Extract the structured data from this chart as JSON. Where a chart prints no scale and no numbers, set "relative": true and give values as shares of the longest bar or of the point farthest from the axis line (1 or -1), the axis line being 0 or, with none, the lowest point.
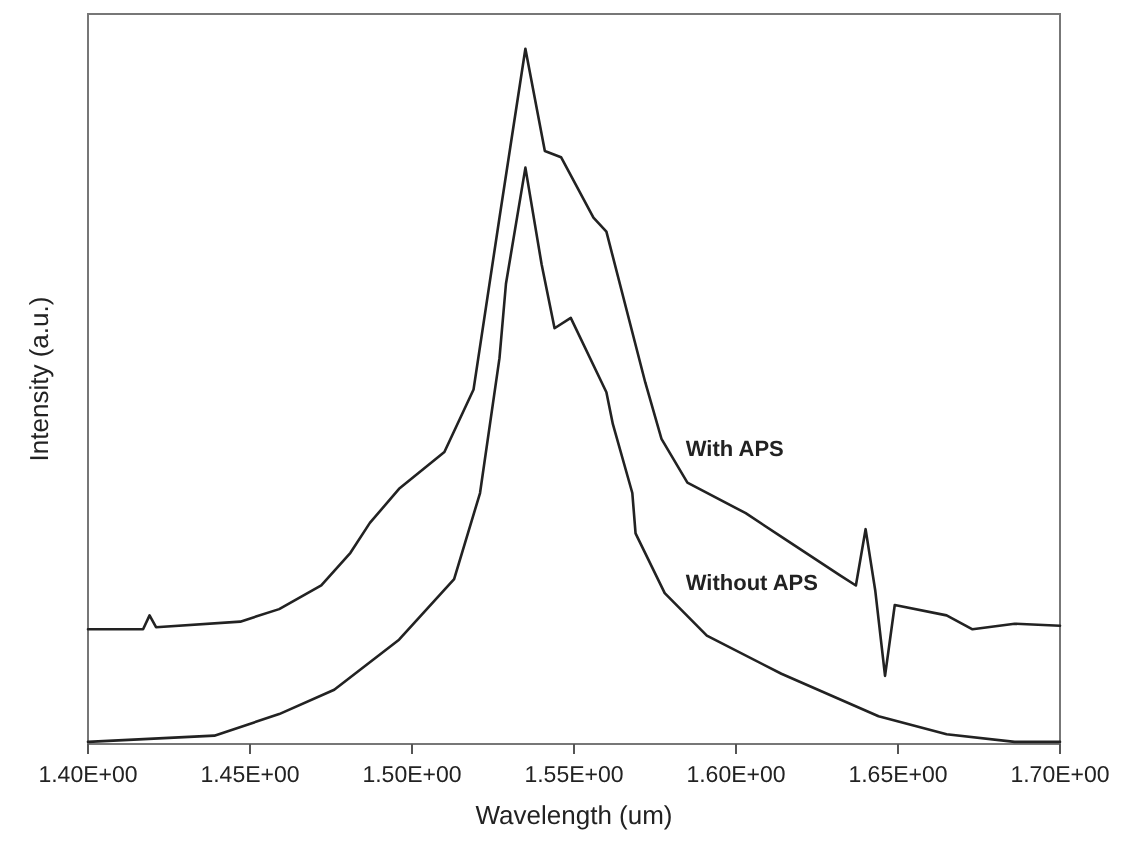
{
  "chart_data": {
    "type": "line",
    "xlabel": "Wavelength (um)",
    "ylabel": "Intensity (a.u.)",
    "relative": true,
    "grid": false,
    "marker": "none",
    "line_style": "solid",
    "xlim": [
      1.4,
      1.7
    ],
    "xticks": [
      {
        "value": 1.4,
        "label": "1.40E+00"
      },
      {
        "value": 1.45,
        "label": "1.45E+00"
      },
      {
        "value": 1.5,
        "label": "1.50E+00"
      },
      {
        "value": 1.55,
        "label": "1.55E+00"
      },
      {
        "value": 1.6,
        "label": "1.60E+00"
      },
      {
        "value": 1.65,
        "label": "1.65E+00"
      },
      {
        "value": 1.7,
        "label": "1.70E+00"
      }
    ],
    "series": [
      {
        "name": "With APS",
        "color": "#222222",
        "x": [
          1.4,
          1.417,
          1.419,
          1.421,
          1.447,
          1.459,
          1.472,
          1.481,
          1.487,
          1.496,
          1.51,
          1.519,
          1.527,
          1.535,
          1.541,
          1.546,
          1.556,
          1.56,
          1.572,
          1.577,
          1.585,
          1.603,
          1.615,
          1.632,
          1.637,
          1.64,
          1.643,
          1.646,
          1.649,
          1.665,
          1.673,
          1.686,
          1.7
        ],
        "values": [
          0.165,
          0.165,
          0.185,
          0.168,
          0.176,
          0.194,
          0.228,
          0.275,
          0.318,
          0.367,
          0.42,
          0.51,
          0.757,
          1.0,
          0.853,
          0.844,
          0.757,
          0.737,
          0.52,
          0.439,
          0.376,
          0.332,
          0.295,
          0.243,
          0.228,
          0.309,
          0.22,
          0.098,
          0.2,
          0.185,
          0.165,
          0.173,
          0.17
        ]
      },
      {
        "name": "Without APS",
        "color": "#222222",
        "x": [
          1.4,
          1.439,
          1.459,
          1.476,
          1.496,
          1.513,
          1.521,
          1.527,
          1.529,
          1.535,
          1.54,
          1.544,
          1.549,
          1.56,
          1.562,
          1.568,
          1.569,
          1.578,
          1.591,
          1.614,
          1.644,
          1.665,
          1.686,
          1.7
        ],
        "values": [
          0.003,
          0.012,
          0.043,
          0.078,
          0.15,
          0.237,
          0.361,
          0.555,
          0.662,
          0.829,
          0.69,
          0.598,
          0.613,
          0.506,
          0.46,
          0.361,
          0.303,
          0.217,
          0.156,
          0.101,
          0.04,
          0.014,
          0.003,
          0.003
        ]
      }
    ]
  }
}
